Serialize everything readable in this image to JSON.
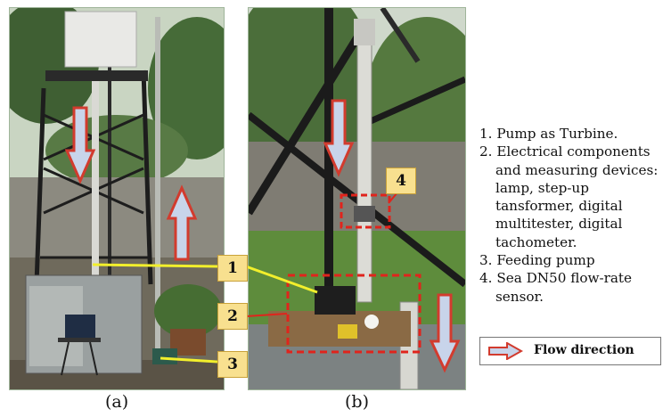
{
  "figure": {
    "panels": [
      {
        "caption": "(a)"
      },
      {
        "caption": "(b)"
      }
    ],
    "callouts": [
      "1",
      "2",
      "3",
      "4"
    ],
    "legend_items": [
      "1. Pump as Turbine.",
      "2. Electrical components and measuring devices: lamp, step-up tansformer, digital multitester, digital tachometer.",
      "3. Feeding pump",
      "4. Sea DN50 flow-rate sensor."
    ],
    "flow_direction_label": "Flow direction",
    "colors": {
      "arrow_fill": "#c8d4ea",
      "arrow_outline": "#d23b2e",
      "leader_line": "#f2ef2c",
      "dashed_box": "#e0241c",
      "callout_fill": "#f8e08f"
    }
  }
}
